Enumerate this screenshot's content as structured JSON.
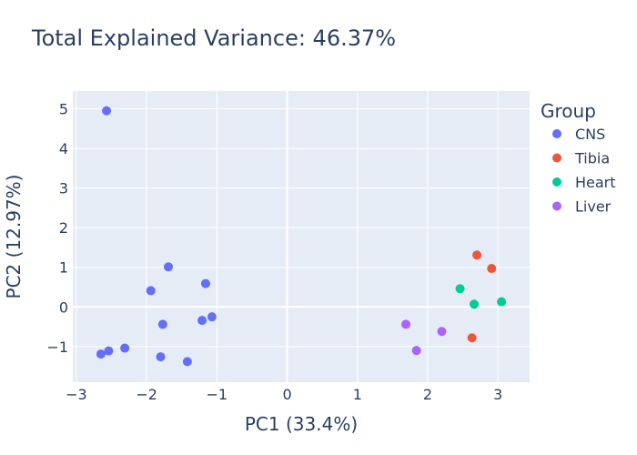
{
  "chart_data": {
    "type": "scatter",
    "title": "Total Explained Variance: 46.37%",
    "xlabel": "PC1 (33.4%)",
    "ylabel": "PC2 (12.97%)",
    "xlim": [
      -3.05,
      3.45
    ],
    "ylim": [
      -1.9,
      5.45
    ],
    "xticks": [
      -3,
      -2,
      -1,
      0,
      1,
      2,
      3
    ],
    "yticks": [
      -1,
      0,
      1,
      2,
      3,
      4,
      5
    ],
    "grid": true,
    "legend": {
      "title": "Group",
      "position": "right"
    },
    "series": [
      {
        "name": "CNS",
        "color": "#636efa",
        "points": [
          {
            "x": -2.57,
            "y": 4.95
          },
          {
            "x": -1.69,
            "y": 1.01
          },
          {
            "x": -1.16,
            "y": 0.59
          },
          {
            "x": -1.94,
            "y": 0.41
          },
          {
            "x": -1.07,
            "y": -0.25
          },
          {
            "x": -1.21,
            "y": -0.34
          },
          {
            "x": -1.77,
            "y": -0.44
          },
          {
            "x": -2.31,
            "y": -1.04
          },
          {
            "x": -2.54,
            "y": -1.11
          },
          {
            "x": -2.65,
            "y": -1.19
          },
          {
            "x": -1.8,
            "y": -1.26
          },
          {
            "x": -1.42,
            "y": -1.38
          }
        ]
      },
      {
        "name": "Tibia",
        "color": "#ef553b",
        "points": [
          {
            "x": 2.7,
            "y": 1.31
          },
          {
            "x": 2.91,
            "y": 0.97
          },
          {
            "x": 2.63,
            "y": -0.78
          }
        ]
      },
      {
        "name": "Heart",
        "color": "#00cc96",
        "points": [
          {
            "x": 2.46,
            "y": 0.46
          },
          {
            "x": 2.66,
            "y": 0.07
          },
          {
            "x": 3.05,
            "y": 0.13
          }
        ]
      },
      {
        "name": "Liver",
        "color": "#ab63fa",
        "points": [
          {
            "x": 1.69,
            "y": -0.44
          },
          {
            "x": 2.2,
            "y": -0.62
          },
          {
            "x": 1.84,
            "y": -1.1
          }
        ]
      }
    ]
  }
}
